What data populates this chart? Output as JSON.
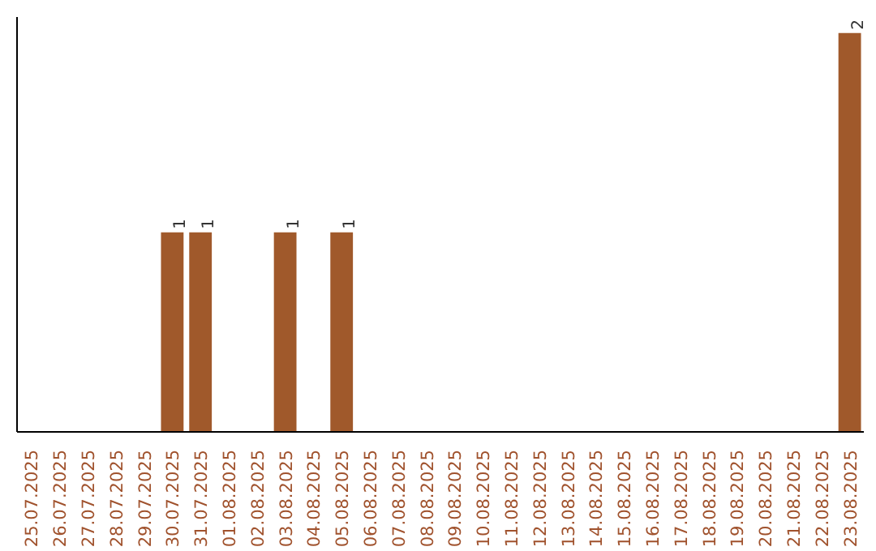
{
  "chart_data": {
    "type": "bar",
    "categories": [
      "25.07.2025",
      "26.07.2025",
      "27.07.2025",
      "28.07.2025",
      "29.07.2025",
      "30.07.2025",
      "31.07.2025",
      "01.08.2025",
      "02.08.2025",
      "03.08.2025",
      "04.08.2025",
      "05.08.2025",
      "06.08.2025",
      "07.08.2025",
      "08.08.2025",
      "09.08.2025",
      "10.08.2025",
      "11.08.2025",
      "12.08.2025",
      "13.08.2025",
      "14.08.2025",
      "15.08.2025",
      "16.08.2025",
      "17.08.2025",
      "18.08.2025",
      "19.08.2025",
      "20.08.2025",
      "21.08.2025",
      "22.08.2025",
      "23.08.2025"
    ],
    "values": [
      0,
      0,
      0,
      0,
      0,
      1,
      1,
      0,
      0,
      1,
      0,
      1,
      0,
      0,
      0,
      0,
      0,
      0,
      0,
      0,
      0,
      0,
      0,
      0,
      0,
      0,
      0,
      0,
      0,
      2
    ],
    "value_labels": [
      null,
      null,
      null,
      null,
      null,
      "1",
      "1",
      null,
      null,
      "1",
      null,
      "1",
      null,
      null,
      null,
      null,
      null,
      null,
      null,
      null,
      null,
      null,
      null,
      null,
      null,
      null,
      null,
      null,
      null,
      "2"
    ],
    "color": "#a0592b",
    "grid": false,
    "tick_labels": "x"
  }
}
